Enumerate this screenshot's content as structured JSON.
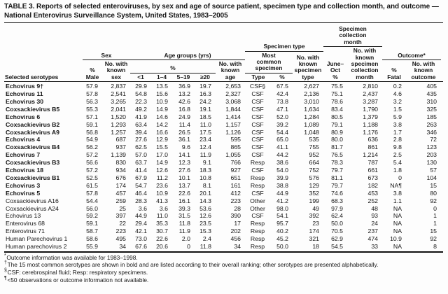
{
  "page": {
    "title": "TABLE 3. Reports of selected enteroviruses, by sex and age of source patient, specimen type and collection month, and outcome — National Enterovirus Surveillance System, United States, 1983–2005"
  },
  "header": {
    "serotypes": "Selected serotypes",
    "sex": {
      "group": "Sex",
      "pct": "%",
      "male": "Male",
      "known": [
        "No. with",
        "known",
        "sex"
      ]
    },
    "age": {
      "group": "Age groups (yrs)",
      "pct": "%",
      "bins": [
        "<1",
        "1–4",
        "5–19",
        "≥20"
      ],
      "known": [
        "No. with",
        "known",
        "age"
      ]
    },
    "specimen": {
      "group": "Specimen type",
      "most_common": [
        "Most",
        "common",
        "specimen"
      ],
      "type": "Type",
      "pct": "%",
      "known": [
        "No. with",
        "known",
        "specimen",
        "type"
      ]
    },
    "collection": {
      "group": [
        "Specimen",
        "collection",
        "month"
      ],
      "june_oct": [
        "June–",
        "Oct",
        "%"
      ],
      "known": [
        "No. with",
        "known",
        "specimen",
        "collection",
        "month"
      ]
    },
    "outcome": {
      "group": "Outcome*",
      "pct": "%",
      "fatal": "Fatal",
      "known": [
        "No. with",
        "known",
        "outcome"
      ]
    }
  },
  "table": {
    "rows": [
      {
        "serotype": "Echovirus 9†",
        "bold": true,
        "values": [
          "57.9",
          "2,837",
          "29.9",
          "13.5",
          "36.9",
          "19.7",
          "2,653",
          "CSF§",
          "67.5",
          "2,627",
          "75.5",
          "2,810",
          "0.2",
          "405"
        ]
      },
      {
        "serotype": "Echovirus 11",
        "bold": true,
        "values": [
          "57.8",
          "2,541",
          "54.8",
          "15.6",
          "13.2",
          "16.3",
          "2,327",
          "CSF",
          "42.4",
          "2,136",
          "75.1",
          "2,437",
          "4.6",
          "435"
        ]
      },
      {
        "serotype": "Echovirus 30",
        "bold": true,
        "values": [
          "56.3",
          "3,265",
          "22.3",
          "10.9",
          "42.6",
          "24.2",
          "3,068",
          "CSF",
          "73.8",
          "3,010",
          "78.6",
          "3,287",
          "3.2",
          "310"
        ]
      },
      {
        "serotype": "Coxsackievirus B5",
        "bold": true,
        "values": [
          "55.3",
          "2,041",
          "49.2",
          "14.9",
          "16.8",
          "19.1",
          "1,844",
          "CSF",
          "47.1",
          "1,634",
          "83.4",
          "1,790",
          "1.5",
          "325"
        ]
      },
      {
        "serotype": "Echovirus 6",
        "bold": true,
        "values": [
          "57.1",
          "1,520",
          "41.9",
          "14.6",
          "24.9",
          "18.5",
          "1,414",
          "CSF",
          "52.0",
          "1,284",
          "80.5",
          "1,379",
          "5.9",
          "185"
        ]
      },
      {
        "serotype": "Coxsackievirus B2",
        "bold": true,
        "values": [
          "59.1",
          "1,293",
          "63.4",
          "14.2",
          "11.4",
          "11.0",
          "1,157",
          "CSF",
          "39.2",
          "1,089",
          "79.1",
          "1,188",
          "3.8",
          "263"
        ]
      },
      {
        "serotype": "Coxsackievirus A9",
        "bold": true,
        "values": [
          "56.8",
          "1,257",
          "39.4",
          "16.6",
          "26.5",
          "17.5",
          "1,126",
          "CSF",
          "54.4",
          "1,048",
          "80.9",
          "1,176",
          "1.7",
          "346"
        ]
      },
      {
        "serotype": "Echovirus 4",
        "bold": true,
        "values": [
          "54.9",
          "687",
          "27.6",
          "12.9",
          "36.1",
          "23.4",
          "595",
          "CSF",
          "65.0",
          "535",
          "80.0",
          "636",
          "2.8",
          "72"
        ]
      },
      {
        "serotype": "Coxsackievirus B4",
        "bold": true,
        "values": [
          "56.2",
          "937",
          "62.5",
          "15.5",
          "9.6",
          "12.4",
          "865",
          "CSF",
          "41.1",
          "755",
          "81.7",
          "861",
          "9.8",
          "123"
        ]
      },
      {
        "serotype": "Echovirus 7",
        "bold": true,
        "values": [
          "57.2",
          "1,139",
          "57.0",
          "17.0",
          "14.1",
          "11.9",
          "1,055",
          "CSF",
          "44.2",
          "952",
          "76.5",
          "1,214",
          "2.5",
          "203"
        ]
      },
      {
        "serotype": "Coxsackievirus B3",
        "bold": true,
        "values": [
          "56.6",
          "830",
          "63.7",
          "14.9",
          "12.3",
          "9.1",
          "766",
          "Resp",
          "38.6",
          "664",
          "78.3",
          "787",
          "5.4",
          "130"
        ]
      },
      {
        "serotype": "Echovirus 18",
        "bold": true,
        "values": [
          "57.2",
          "934",
          "41.4",
          "12.6",
          "27.6",
          "18.3",
          "927",
          "CSF",
          "54.0",
          "752",
          "79.7",
          "661",
          "1.8",
          "57"
        ]
      },
      {
        "serotype": "Coxsackievirus B1",
        "bold": true,
        "values": [
          "52.5",
          "676",
          "67.9",
          "11.2",
          "10.1",
          "10.8",
          "651",
          "Resp",
          "39.9",
          "576",
          "81.1",
          "673",
          "0",
          "104"
        ]
      },
      {
        "serotype": "Echovirus 3",
        "bold": true,
        "values": [
          "61.5",
          "174",
          "54.7",
          "23.6",
          "13.7",
          "8.1",
          "161",
          "Resp",
          "38.8",
          "129",
          "79.7",
          "182",
          "NA¶",
          "15"
        ]
      },
      {
        "serotype": "Echovirus 5",
        "bold": true,
        "values": [
          "57.8",
          "457",
          "46.4",
          "10.9",
          "22.6",
          "20.1",
          "412",
          "CSF",
          "44.9",
          "352",
          "74.6",
          "453",
          "3.8",
          "80"
        ]
      },
      {
        "serotype": "Coxsackievirus A16",
        "bold": false,
        "values": [
          "54.4",
          "259",
          "28.3",
          "41.3",
          "16.1",
          "14.3",
          "223",
          "Other",
          "41.2",
          "199",
          "68.3",
          "252",
          "1.1",
          "92"
        ]
      },
      {
        "serotype": "Coxsackievirus A24",
        "bold": false,
        "values": [
          "56.0",
          "25",
          "3.6",
          "3.6",
          "39.3",
          "53.6",
          "28",
          "Other",
          "98.0",
          "49",
          "97.9",
          "48",
          "NA",
          "0"
        ]
      },
      {
        "serotype": "Echovirus 13",
        "bold": false,
        "values": [
          "59.2",
          "397",
          "44.9",
          "11.0",
          "31.5",
          "12.6",
          "390",
          "CSF",
          "54.1",
          "392",
          "62.4",
          "93",
          "NA",
          "1"
        ]
      },
      {
        "serotype": "Enterovirus 68",
        "bold": false,
        "values": [
          "59.1",
          "22",
          "29.4",
          "35.3",
          "11.8",
          "23.5",
          "17",
          "Resp",
          "95.7",
          "23",
          "50.0",
          "24",
          "NA",
          "1"
        ]
      },
      {
        "serotype": "Enterovirus 71",
        "bold": false,
        "values": [
          "58.7",
          "223",
          "42.1",
          "30.7",
          "11.9",
          "15.3",
          "202",
          "Resp",
          "40.2",
          "174",
          "70.5",
          "237",
          "NA",
          "15"
        ]
      },
      {
        "serotype": "Human Parechovirus 1",
        "bold": false,
        "values": [
          "58.6",
          "495",
          "73.0",
          "22.6",
          "2.0",
          "2.4",
          "456",
          "Resp",
          "45.2",
          "321",
          "62.9",
          "474",
          "10.9",
          "92"
        ]
      },
      {
        "serotype": "Human parechovirus 2",
        "bold": false,
        "values": [
          "55.9",
          "34",
          "67.6",
          "20.6",
          "0",
          "11.8",
          "34",
          "Resp",
          "50.0",
          "18",
          "54.5",
          "33",
          "NA",
          "8"
        ]
      }
    ]
  },
  "footnotes": [
    {
      "marker": "*",
      "text": "Outcome information was available for 1983–1998."
    },
    {
      "marker": "†",
      "text": "The 15 most common serotypes are shown in bold and are listed according to their overall ranking; other serotypes are presented alphabetically."
    },
    {
      "marker": "§",
      "text": "CSF: cerebrospinal fluid; Resp: respiratory specimens."
    },
    {
      "marker": "¶",
      "text": "<50 observations or outcome information not available."
    }
  ]
}
